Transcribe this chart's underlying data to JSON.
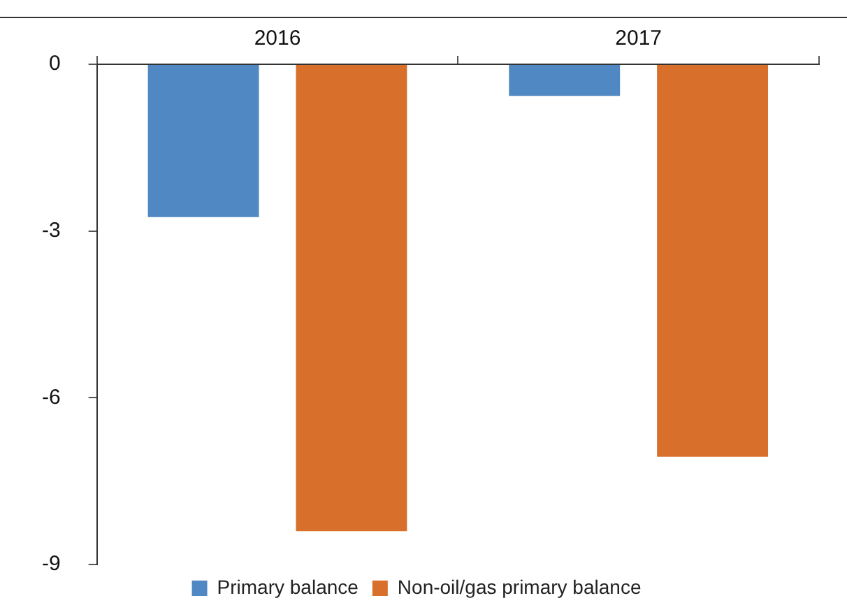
{
  "chart_data": {
    "type": "bar",
    "categories": [
      "2016",
      "2017"
    ],
    "series": [
      {
        "name": "Primary balance",
        "color": "#4f88c2",
        "values": [
          -2.75,
          -0.57
        ]
      },
      {
        "name": "Non-oil/gas primary balance",
        "color": "#d86f2a",
        "values": [
          -8.4,
          -7.06
        ]
      }
    ],
    "ylim": [
      -9,
      0
    ],
    "yticks": [
      -9,
      -6,
      -3,
      0
    ],
    "legend": "bottom",
    "grid": false
  }
}
